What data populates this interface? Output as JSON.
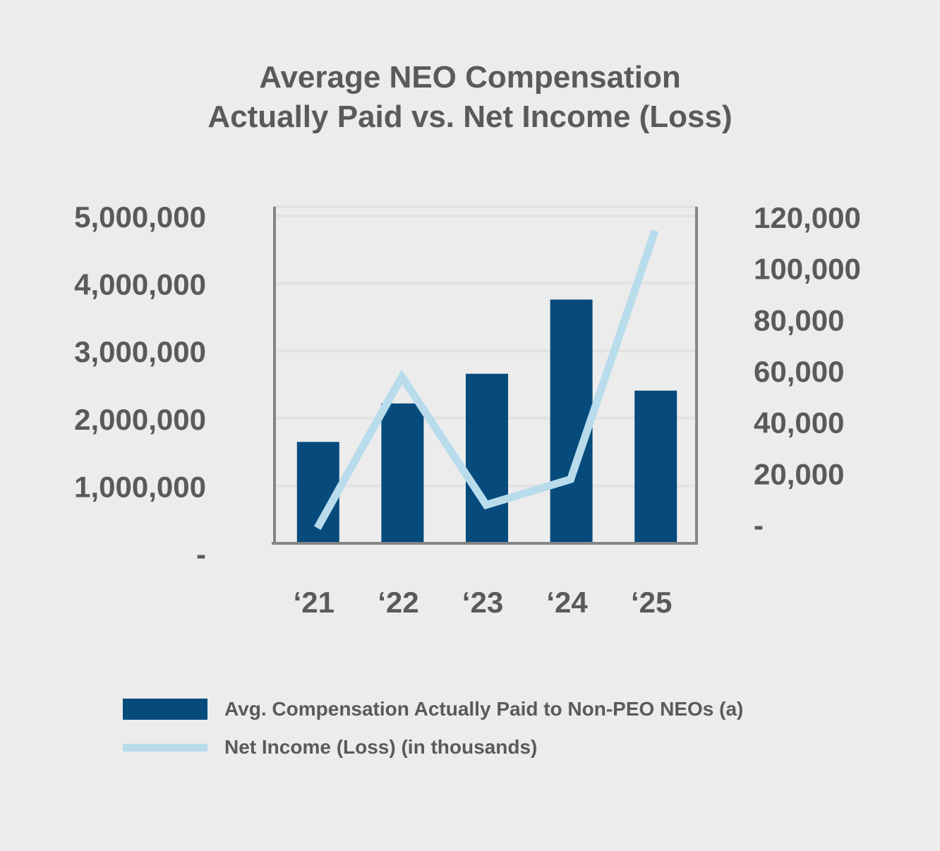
{
  "title": {
    "line1": "Average NEO Compensation",
    "line2": "Actually Paid vs. Net Income (Loss)"
  },
  "colors": {
    "background": "#ececec",
    "bar": "#074b7d",
    "line": "#b8dceb",
    "text": "#5a5a5a",
    "axis": "#858585",
    "grid": "#e2e2e2"
  },
  "chart_data": {
    "type": "bar",
    "title": "Average NEO Compensation Actually Paid vs. Net Income (Loss)",
    "categories": [
      "‘21",
      "‘22",
      "‘23",
      "‘24",
      "‘25"
    ],
    "series": [
      {
        "name": "Avg. Compensation Actually Paid to Non-PEO NEOs (a)",
        "type": "bar",
        "axis": "left",
        "values": [
          1650000,
          2220000,
          2660000,
          3760000,
          2410000
        ]
      },
      {
        "name": "Net Income (Loss) (in thousands)",
        "type": "line",
        "axis": "right",
        "values": [
          -2000,
          57000,
          7000,
          17000,
          114000
        ]
      }
    ],
    "y_left": {
      "ylim": [
        0,
        5000000
      ],
      "ticks": [
        0,
        1000000,
        2000000,
        3000000,
        4000000,
        5000000
      ],
      "tick_labels": [
        "-",
        "1,000,000",
        "2,000,000",
        "3,000,000",
        "4,000,000",
        "5,000,000"
      ]
    },
    "y_right": {
      "ylim": [
        0,
        120000
      ],
      "ticks": [
        0,
        20000,
        40000,
        60000,
        80000,
        100000,
        120000
      ],
      "tick_labels": [
        "-",
        "20,000",
        "40,000",
        "60,000",
        "80,000",
        "100,000",
        "120,000"
      ]
    },
    "grid": true,
    "legend_position": "bottom"
  }
}
